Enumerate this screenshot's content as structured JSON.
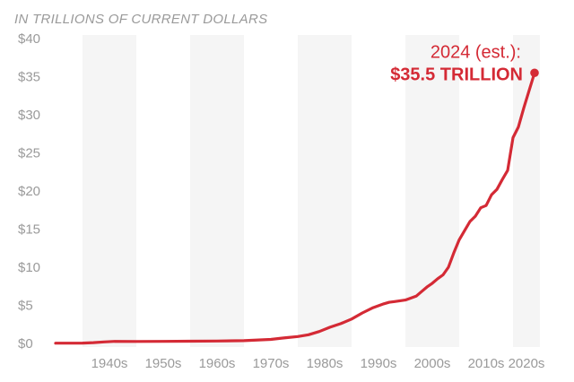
{
  "chart_data": {
    "type": "line",
    "subtitle": "IN TRILLIONS OF CURRENT DOLLARS",
    "title": "",
    "xlabel": "",
    "ylabel": "",
    "ylim": [
      0,
      40
    ],
    "xlim": [
      1935,
      2025
    ],
    "y_ticks": [
      0,
      5,
      10,
      15,
      20,
      25,
      30,
      35,
      40
    ],
    "y_tick_labels": [
      "$0",
      "$5",
      "$10",
      "$15",
      "$20",
      "$25",
      "$30",
      "$35",
      "$40"
    ],
    "x_tick_labels": [
      "1940s",
      "1950s",
      "1960s",
      "1970s",
      "1980s",
      "1990s",
      "2000s",
      "2010s",
      "2020s"
    ],
    "grid": "alternating decade bands",
    "colors": {
      "line": "#d42a35",
      "band": "#f5f5f5",
      "axis_text": "#9a9a9a"
    },
    "series": [
      {
        "x": [
          1935,
          1937,
          1940,
          1942,
          1944,
          1946,
          1950,
          1955,
          1960,
          1965,
          1970,
          1975,
          1977,
          1978,
          1980,
          1982,
          1984,
          1986,
          1988,
          1990,
          1992,
          1994,
          1996,
          1997,
          1998,
          2000,
          2002,
          2003,
          2004,
          2005,
          2006,
          2007,
          2008,
          2009,
          2010,
          2011,
          2012,
          2013,
          2014,
          2015,
          2016,
          2017,
          2018,
          2019,
          2020,
          2021,
          2022,
          2023,
          2024
        ],
        "y": [
          0.03,
          0.04,
          0.05,
          0.1,
          0.2,
          0.27,
          0.26,
          0.27,
          0.29,
          0.32,
          0.37,
          0.53,
          0.7,
          0.77,
          0.91,
          1.14,
          1.57,
          2.13,
          2.6,
          3.2,
          4.0,
          4.7,
          5.2,
          5.4,
          5.5,
          5.7,
          6.2,
          6.8,
          7.4,
          7.9,
          8.5,
          9.0,
          10.0,
          11.9,
          13.6,
          14.8,
          16.0,
          16.7,
          17.8,
          18.1,
          19.5,
          20.2,
          21.5,
          22.7,
          27.0,
          28.4,
          30.9,
          33.2,
          35.5
        ]
      }
    ],
    "annotation": {
      "line1": "2024 (est.):",
      "line2": "$35.5 TRILLION",
      "x": 2024,
      "y": 35.5
    }
  }
}
